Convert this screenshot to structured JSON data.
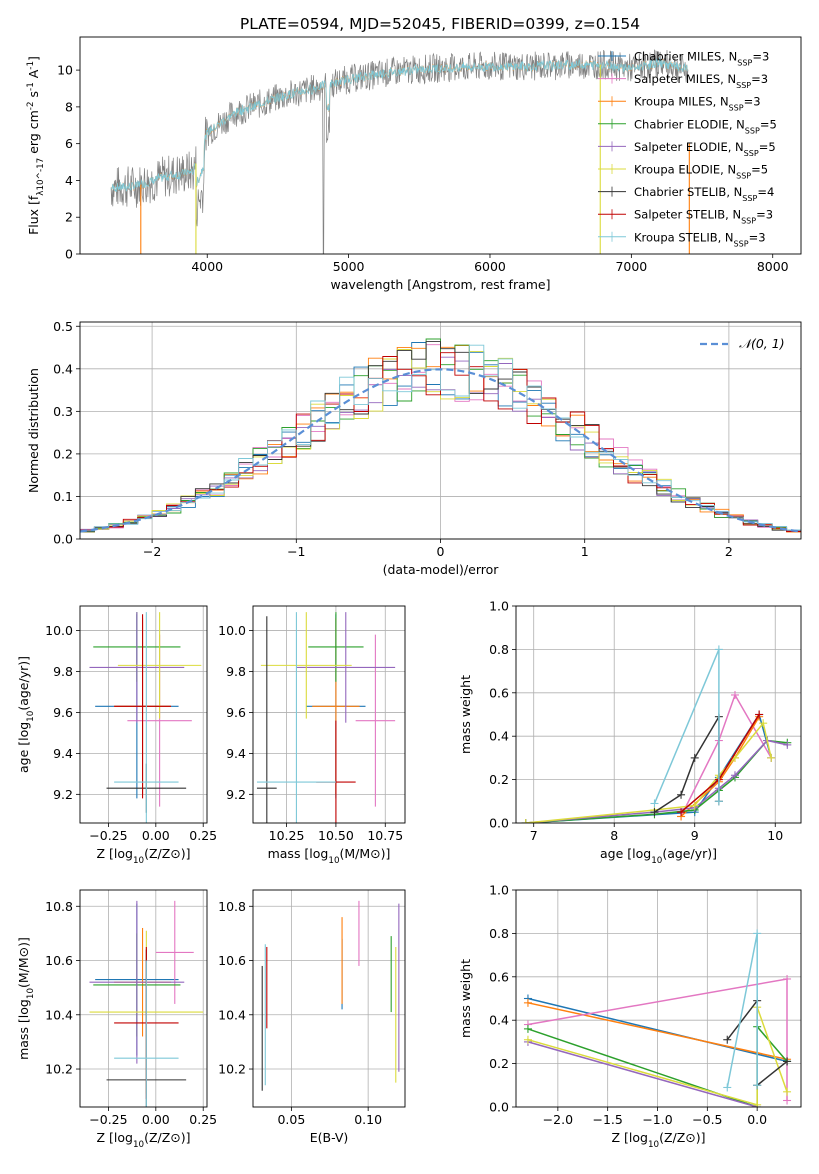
{
  "figure_title": "PLATE=0594, MJD=52045, FIBERID=0399, z=0.154",
  "colors": {
    "chabrier_miles": "#1f77b4",
    "salpeter_miles": "#e377c2",
    "kroupa_miles": "#ff7f0e",
    "chabrier_elodie": "#2ca02c",
    "salpeter_elodie": "#9467bd",
    "kroupa_elodie": "#dbdb3c",
    "chabrier_stelib": "#333333",
    "salpeter_stelib": "#c00000",
    "kroupa_stelib": "#7ec8d8",
    "data": "#808080",
    "normal": "#5a8fd6"
  },
  "chart_data": [
    {
      "id": "spectrum",
      "type": "line",
      "xlabel": "wavelength [Angstrom, rest frame]",
      "ylabel": "Flux [f_λ10^-17 erg cm^-2 s^-1 A^-1]",
      "xlim": [
        3100,
        8200
      ],
      "ylim": [
        0,
        11.8
      ],
      "xticks": [
        "4000",
        "5000",
        "6000",
        "7000",
        "8000"
      ],
      "yticks": [
        "0",
        "2",
        "4",
        "6",
        "8",
        "10"
      ],
      "grid": false,
      "legend_position": "right",
      "continuum": {
        "x": [
          3320,
          3500,
          3700,
          3900,
          4000,
          4200,
          4500,
          4800,
          5000,
          5300,
          5600,
          6000,
          6300,
          6600,
          6800,
          7000,
          7200,
          7400
        ],
        "y": [
          3.6,
          3.7,
          4.2,
          4.5,
          6.6,
          7.7,
          8.5,
          9.1,
          9.5,
          9.9,
          10.1,
          10.2,
          10.2,
          10.3,
          10.3,
          10.1,
          10.4,
          10.0
        ]
      },
      "legend": [
        "Chabrier MILES, N_SSP=3",
        "Salpeter MILES, N_SSP=3",
        "Kroupa MILES, N_SSP=3",
        "Chabrier ELODIE, N_SSP=5",
        "Salpeter ELODIE, N_SSP=5",
        "Kroupa ELODIE, N_SSP=5",
        "Chabrier STELIB, N_SSP=4",
        "Salpeter STELIB, N_SSP=3",
        "Kroupa STELIB, N_SSP=3"
      ]
    },
    {
      "id": "residuals",
      "type": "histogram",
      "xlabel": "(data-model)/error",
      "ylabel": "Normed distribution",
      "xlim": [
        -2.5,
        2.5
      ],
      "ylim": [
        0,
        0.51
      ],
      "xticks": [
        "−2",
        "−1",
        "0",
        "1",
        "2"
      ],
      "yticks": [
        "0.0",
        "0.1",
        "0.2",
        "0.3",
        "0.4",
        "0.5"
      ],
      "grid": true,
      "legend": [
        "𝒩(0, 1)"
      ],
      "legend_position": "top-right",
      "bin_width": 0.1
    },
    {
      "id": "age_vs_z",
      "type": "errorbar",
      "xlabel": "Z [log10(Z/Z⊙)]",
      "ylabel": "age  [log10(age/yr)]",
      "xlim": [
        -0.4,
        0.27
      ],
      "ylim": [
        9.06,
        10.12
      ],
      "xticks": [
        "−0.25",
        "0.00",
        "0.25"
      ],
      "yticks": [
        "9.2",
        "9.4",
        "9.6",
        "9.8",
        "10.0"
      ],
      "grid": true,
      "points": [
        {
          "x": -0.1,
          "y": 9.63,
          "xerr": 0.22,
          "yerr": 0.45,
          "c": "chabrier_miles"
        },
        {
          "x": 0.02,
          "y": 9.56,
          "xerr": 0.17,
          "yerr": 0.42,
          "c": "salpeter_miles"
        },
        {
          "x": -0.07,
          "y": 9.63,
          "xerr": 0.15,
          "yerr": 0.43,
          "c": "kroupa_miles"
        },
        {
          "x": -0.1,
          "y": 9.92,
          "xerr": 0.23,
          "yerr": 0.17,
          "c": "chabrier_elodie"
        },
        {
          "x": -0.1,
          "y": 9.82,
          "xerr": 0.25,
          "yerr": 0.27,
          "c": "salpeter_elodie"
        },
        {
          "x": 0.02,
          "y": 9.83,
          "xerr": 0.22,
          "yerr": 0.26,
          "c": "kroupa_elodie"
        },
        {
          "x": -0.05,
          "y": 9.23,
          "xerr": 0.21,
          "yerr": 0.12,
          "c": "chabrier_stelib"
        },
        {
          "x": -0.07,
          "y": 9.63,
          "xerr": 0.15,
          "yerr": 0.45,
          "c": "salpeter_stelib"
        },
        {
          "x": -0.05,
          "y": 9.26,
          "xerr": 0.17,
          "yerr": 0.83,
          "c": "kroupa_stelib"
        }
      ]
    },
    {
      "id": "age_vs_mass",
      "type": "errorbar",
      "xlabel": "mass [log10(M/M⊙)]",
      "ylabel": "",
      "xlim": [
        10.08,
        10.85
      ],
      "ylim": [
        9.06,
        10.12
      ],
      "xticks": [
        "10.25",
        "10.50",
        "10.75"
      ],
      "yticks": [
        "9.2",
        "9.4",
        "9.6",
        "9.8",
        "10.0"
      ],
      "grid": true,
      "points": [
        {
          "x": 10.5,
          "y": 9.63,
          "xerr": 0.15,
          "yerr": 0.45,
          "c": "chabrier_miles"
        },
        {
          "x": 10.7,
          "y": 9.56,
          "xerr": 0.1,
          "yerr": 0.42,
          "c": "salpeter_miles"
        },
        {
          "x": 10.5,
          "y": 9.63,
          "xerr": 0.12,
          "yerr": 0.43,
          "c": "kroupa_miles"
        },
        {
          "x": 10.5,
          "y": 9.92,
          "xerr": 0.14,
          "yerr": 0.17,
          "c": "chabrier_elodie"
        },
        {
          "x": 10.55,
          "y": 9.82,
          "xerr": 0.25,
          "yerr": 0.27,
          "c": "salpeter_elodie"
        },
        {
          "x": 10.35,
          "y": 9.83,
          "xerr": 0.23,
          "yerr": 0.26,
          "c": "kroupa_elodie"
        },
        {
          "x": 10.15,
          "y": 9.23,
          "xerr": 0.05,
          "yerr": 0.84,
          "c": "chabrier_stelib"
        },
        {
          "x": 10.5,
          "y": 9.26,
          "xerr": 0.1,
          "yerr": 0.3,
          "c": "salpeter_stelib"
        },
        {
          "x": 10.3,
          "y": 9.26,
          "xerr": 0.2,
          "yerr": 0.83,
          "c": "kroupa_stelib"
        }
      ]
    },
    {
      "id": "weight_vs_age",
      "type": "line",
      "xlabel": "age  [log10(age/yr)]",
      "ylabel": "mass weight",
      "xlim": [
        6.78,
        10.32
      ],
      "ylim": [
        0,
        1.0
      ],
      "xticks": [
        "7",
        "8",
        "9",
        "10"
      ],
      "yticks": [
        "0.0",
        "0.2",
        "0.4",
        "0.6",
        "0.8",
        "1.0"
      ],
      "grid": true,
      "series": [
        {
          "c": "chabrier_miles",
          "x": [
            6.9,
            9.0,
            9.3,
            9.8,
            9.95
          ],
          "y": [
            0.0,
            0.05,
            0.21,
            0.5,
            0.3
          ]
        },
        {
          "c": "salpeter_miles",
          "x": [
            8.83,
            9.3,
            9.5,
            9.95
          ],
          "y": [
            0.03,
            0.38,
            0.59,
            0.3
          ]
        },
        {
          "c": "kroupa_miles",
          "x": [
            8.83,
            9.3,
            9.5,
            9.8
          ],
          "y": [
            0.03,
            0.19,
            0.3,
            0.49
          ]
        },
        {
          "c": "chabrier_elodie",
          "x": [
            6.9,
            8.5,
            9.0,
            9.3,
            9.5,
            9.9,
            10.15
          ],
          "y": [
            0.0,
            0.04,
            0.06,
            0.15,
            0.21,
            0.38,
            0.37
          ]
        },
        {
          "c": "salpeter_elodie",
          "x": [
            6.9,
            8.5,
            9.0,
            9.3,
            9.5,
            9.9,
            10.15
          ],
          "y": [
            0.0,
            0.05,
            0.07,
            0.16,
            0.22,
            0.38,
            0.36
          ]
        },
        {
          "c": "kroupa_elodie",
          "x": [
            6.9,
            8.5,
            9.0,
            9.3,
            9.5,
            9.85,
            9.95
          ],
          "y": [
            0.0,
            0.06,
            0.08,
            0.22,
            0.3,
            0.46,
            0.3
          ]
        },
        {
          "c": "chabrier_stelib",
          "x": [
            8.5,
            8.83,
            9.0,
            9.3,
            9.3
          ],
          "y": [
            0.05,
            0.13,
            0.3,
            0.49,
            0.1
          ]
        },
        {
          "c": "salpeter_stelib",
          "x": [
            8.83,
            9.3,
            9.8
          ],
          "y": [
            0.05,
            0.2,
            0.5
          ]
        },
        {
          "c": "kroupa_stelib",
          "x": [
            8.5,
            9.3,
            9.3
          ],
          "y": [
            0.09,
            0.8,
            0.1
          ]
        }
      ]
    },
    {
      "id": "mass_vs_z",
      "type": "errorbar",
      "xlabel": "Z [log10(Z/Z⊙)]",
      "ylabel": "mass [log10(M/M⊙)]",
      "xlim": [
        -0.4,
        0.27
      ],
      "ylim": [
        10.06,
        10.86
      ],
      "xticks": [
        "−0.25",
        "0.00",
        "0.25"
      ],
      "yticks": [
        "10.2",
        "10.4",
        "10.6",
        "10.8"
      ],
      "grid": true,
      "points": [
        {
          "x": -0.1,
          "y": 10.53,
          "xerr": 0.22,
          "yerr": 0.28,
          "c": "chabrier_miles"
        },
        {
          "x": 0.1,
          "y": 10.63,
          "xerr": 0.1,
          "yerr": 0.19,
          "c": "salpeter_miles"
        },
        {
          "x": -0.07,
          "y": 10.52,
          "xerr": 0.15,
          "yerr": 0.2,
          "c": "kroupa_miles"
        },
        {
          "x": -0.1,
          "y": 10.51,
          "xerr": 0.23,
          "yerr": 0.19,
          "c": "chabrier_elodie"
        },
        {
          "x": -0.1,
          "y": 10.52,
          "xerr": 0.25,
          "yerr": 0.3,
          "c": "salpeter_elodie"
        },
        {
          "x": -0.05,
          "y": 10.41,
          "xerr": 0.3,
          "yerr": 0.3,
          "c": "kroupa_elodie"
        },
        {
          "x": -0.05,
          "y": 10.16,
          "xerr": 0.21,
          "yerr": 0.48,
          "c": "chabrier_stelib"
        },
        {
          "x": -0.05,
          "y": 10.37,
          "xerr": 0.17,
          "yerr": 0.28,
          "c": "salpeter_stelib"
        },
        {
          "x": -0.05,
          "y": 10.24,
          "xerr": 0.17,
          "yerr": 0.36,
          "c": "kroupa_stelib"
        }
      ]
    },
    {
      "id": "mass_vs_ebv",
      "type": "errorbar",
      "xlabel": "E(B-V)",
      "ylabel": "",
      "xlim": [
        0.025,
        0.124
      ],
      "ylim": [
        10.06,
        10.86
      ],
      "xticks": [
        "0.05",
        "0.10"
      ],
      "yticks": [
        "10.2",
        "10.4",
        "10.6",
        "10.8"
      ],
      "grid": true,
      "points": [
        {
          "x": 0.083,
          "y": 10.55,
          "xerr": 0.0,
          "yerr": 0.13,
          "c": "chabrier_miles"
        },
        {
          "x": 0.094,
          "y": 10.7,
          "xerr": 0.0,
          "yerr": 0.12,
          "c": "salpeter_miles"
        },
        {
          "x": 0.083,
          "y": 10.6,
          "xerr": 0.0,
          "yerr": 0.16,
          "c": "kroupa_miles"
        },
        {
          "x": 0.115,
          "y": 10.55,
          "xerr": 0.0,
          "yerr": 0.14,
          "c": "chabrier_elodie"
        },
        {
          "x": 0.12,
          "y": 10.5,
          "xerr": 0.0,
          "yerr": 0.31,
          "c": "salpeter_elodie"
        },
        {
          "x": 0.118,
          "y": 10.4,
          "xerr": 0.0,
          "yerr": 0.25,
          "c": "kroupa_elodie"
        },
        {
          "x": 0.031,
          "y": 10.35,
          "xerr": 0.0,
          "yerr": 0.23,
          "c": "chabrier_stelib"
        },
        {
          "x": 0.034,
          "y": 10.5,
          "xerr": 0.0,
          "yerr": 0.15,
          "c": "salpeter_stelib"
        },
        {
          "x": 0.033,
          "y": 10.4,
          "xerr": 0.0,
          "yerr": 0.26,
          "c": "kroupa_stelib"
        }
      ]
    },
    {
      "id": "weight_vs_z",
      "type": "line",
      "xlabel": "Z [log10(Z/Z⊙)]",
      "ylabel": "mass weight",
      "xlim": [
        -2.42,
        0.44
      ],
      "ylim": [
        0,
        1.0
      ],
      "xticks": [
        "−2.0",
        "−1.5",
        "−1.0",
        "−0.5",
        "0.0"
      ],
      "yticks": [
        "0.0",
        "0.2",
        "0.4",
        "0.6",
        "0.8",
        "1.0"
      ],
      "grid": true,
      "series": [
        {
          "c": "chabrier_miles",
          "x": [
            -2.3,
            0.3
          ],
          "y": [
            0.5,
            0.21
          ]
        },
        {
          "c": "kroupa_miles",
          "x": [
            -2.3,
            0.3
          ],
          "y": [
            0.48,
            0.22
          ]
        },
        {
          "c": "salpeter_miles",
          "x": [
            -2.3,
            0.3,
            0.3
          ],
          "y": [
            0.38,
            0.59,
            0.03
          ]
        },
        {
          "c": "chabrier_elodie",
          "x": [
            -2.3,
            0.0,
            0.0,
            0.3
          ],
          "y": [
            0.36,
            0.0,
            0.37,
            0.21
          ]
        },
        {
          "c": "salpeter_elodie",
          "x": [
            -2.3,
            0.0
          ],
          "y": [
            0.3,
            0.0
          ]
        },
        {
          "c": "kroupa_elodie",
          "x": [
            -2.3,
            0.0,
            0.0,
            0.3
          ],
          "y": [
            0.31,
            0.01,
            0.46,
            0.07
          ]
        },
        {
          "c": "chabrier_stelib",
          "x": [
            -0.3,
            0.0,
            0.0,
            0.3
          ],
          "y": [
            0.31,
            0.49,
            0.1,
            0.21
          ]
        },
        {
          "c": "kroupa_stelib",
          "x": [
            -0.3,
            0.0,
            0.0
          ],
          "y": [
            0.09,
            0.8,
            0.1
          ]
        }
      ]
    }
  ]
}
